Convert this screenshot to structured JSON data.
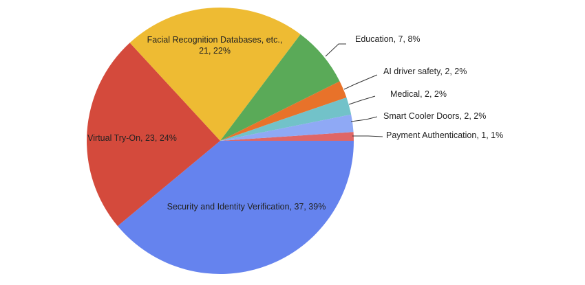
{
  "chart_data": {
    "type": "pie",
    "start_angle_deg": 0,
    "direction": "clockwise",
    "slices": [
      {
        "label": "Payment Authentication",
        "value": 1,
        "percent": "1%",
        "color": "#e06666"
      },
      {
        "label": "Security and Identity Verification",
        "value": 37,
        "percent": "39%",
        "color": "#6583ee"
      },
      {
        "label": "Virtual Try-On",
        "value": 23,
        "percent": "24%",
        "color": "#d44a3c"
      },
      {
        "label": "Facial Recognition Databases, etc.",
        "value": 21,
        "percent": "22%",
        "color": "#eebb33"
      },
      {
        "label": "Education",
        "value": 7,
        "percent": "8%",
        "color": "#5aaa58"
      },
      {
        "label": "AI driver safety",
        "value": 2,
        "percent": "2%",
        "color": "#e8722a"
      },
      {
        "label": "Medical",
        "value": 2,
        "percent": "2%",
        "color": "#72c2c9"
      },
      {
        "label": "Smart Cooler Doors",
        "value": 2,
        "percent": "2%",
        "color": "#8fa9f5"
      }
    ],
    "labels": {
      "payment": "Payment Authentication, 1, 1%",
      "security": "Security and Identity Verification, 37, 39%",
      "tryon": "Virtual Try-On, 23, 24%",
      "facial_line1": "Facial Recognition Databases, etc.,",
      "facial_line2": "21, 22%",
      "education": "Education, 7, 8%",
      "ai_driver": "AI driver safety, 2, 2%",
      "medical": "Medical, 2, 2%",
      "smart_cooler": "Smart Cooler Doors, 2, 2%"
    }
  }
}
